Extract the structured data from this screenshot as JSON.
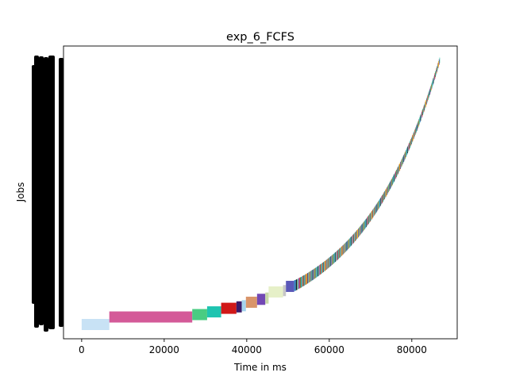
{
  "chart_data": {
    "type": "bar",
    "orientation": "horizontal",
    "title": "exp_6_FCFS",
    "xlabel": "Time in ms",
    "ylabel": "Jobs",
    "xlim": [
      -4400,
      91000
    ],
    "x_ticks": [
      {
        "value": 0,
        "label": "0"
      },
      {
        "value": 20000,
        "label": "20000"
      },
      {
        "value": 40000,
        "label": "40000"
      },
      {
        "value": 60000,
        "label": "60000"
      },
      {
        "value": 80000,
        "label": "80000"
      }
    ],
    "y_tick_labels": "overlapping job labels rendered as a solid black band",
    "grid": false,
    "legend": "none",
    "first_jobs": [
      {
        "start": 0,
        "end": 6700,
        "color": "#c8e2f5"
      },
      {
        "start": 6700,
        "end": 26800,
        "color": "#d45a98"
      },
      {
        "start": 26800,
        "end": 30400,
        "color": "#49cc82"
      },
      {
        "start": 30400,
        "end": 33800,
        "color": "#1fc4b0"
      },
      {
        "start": 33800,
        "end": 37500,
        "color": "#d01818"
      },
      {
        "start": 37500,
        "end": 38800,
        "color": "#3a1a6a"
      },
      {
        "start": 38800,
        "end": 39800,
        "color": "#a4d4ee"
      },
      {
        "start": 39800,
        "end": 42500,
        "color": "#d9956a"
      },
      {
        "start": 42500,
        "end": 44500,
        "color": "#7248b4"
      },
      {
        "start": 44500,
        "end": 45300,
        "color": "#c8d8a8"
      },
      {
        "start": 45300,
        "end": 48800,
        "color": "#e6f0c8"
      },
      {
        "start": 48800,
        "end": 49500,
        "color": "#c6c6c6"
      },
      {
        "start": 49500,
        "end": 51500,
        "color": "#5a58b8"
      }
    ],
    "tail": {
      "start": 51500,
      "end": 86800,
      "job_count": 230,
      "growth_shape": "exponential"
    },
    "palette": [
      "#2e86c1",
      "#17202a",
      "#7dcea0",
      "#8e44ad",
      "#c0392b",
      "#229954",
      "#5dade2",
      "#d35400",
      "#1f618d",
      "#82e0aa",
      "#a93226",
      "#f1c40f",
      "#6c3483",
      "#48c9b0",
      "#e74c3c",
      "#2ecc71",
      "#b03a7c",
      "#1abc9c",
      "#34495e",
      "#9b59b6",
      "#27ae60",
      "#e67e22",
      "#2874a6",
      "#58d68d"
    ]
  }
}
